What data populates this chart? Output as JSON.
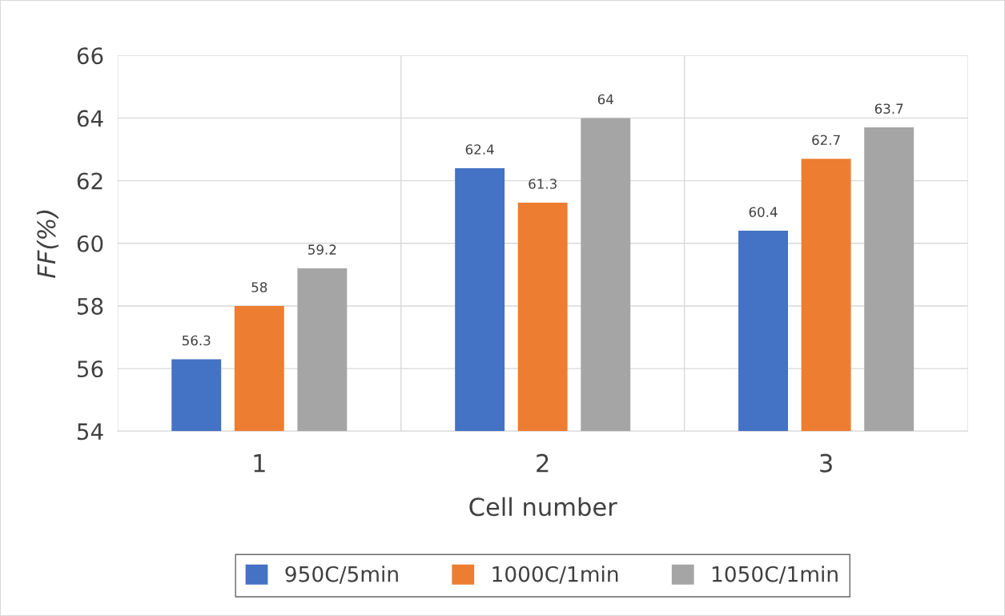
{
  "chart_data": {
    "type": "bar",
    "xlabel": "Cell number",
    "ylabel": "FF(%)",
    "categories": [
      "1",
      "2",
      "3"
    ],
    "series": [
      {
        "name": "950C/5min",
        "color": "#4472c4",
        "values": [
          56.3,
          62.4,
          60.4
        ]
      },
      {
        "name": "1000C/1min",
        "color": "#ed7d31",
        "values": [
          58,
          61.3,
          62.7
        ]
      },
      {
        "name": "1050C/1min",
        "color": "#a5a5a5",
        "values": [
          59.2,
          64,
          63.7
        ]
      }
    ],
    "ylim": [
      54,
      66
    ],
    "yticks": [
      54,
      56,
      58,
      60,
      62,
      64,
      66
    ],
    "grid": true,
    "legend": "bottom",
    "data_labels": true
  }
}
